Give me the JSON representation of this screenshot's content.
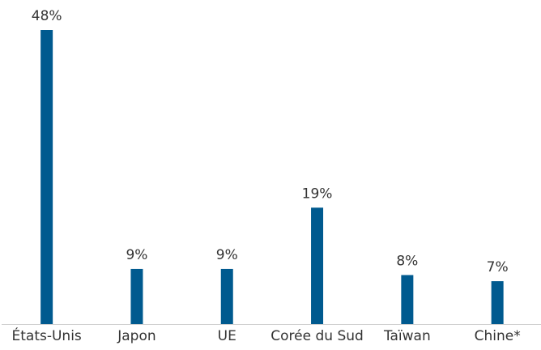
{
  "chart_data": {
    "type": "bar",
    "categories": [
      "États-Unis",
      "Japon",
      "UE",
      "Corée du Sud",
      "Taïwan",
      "Chine*"
    ],
    "values": [
      48,
      9,
      9,
      19,
      8,
      7
    ],
    "value_labels": [
      "48%",
      "9%",
      "9%",
      "19%",
      "8%",
      "7%"
    ],
    "color": "#005a8f"
  }
}
